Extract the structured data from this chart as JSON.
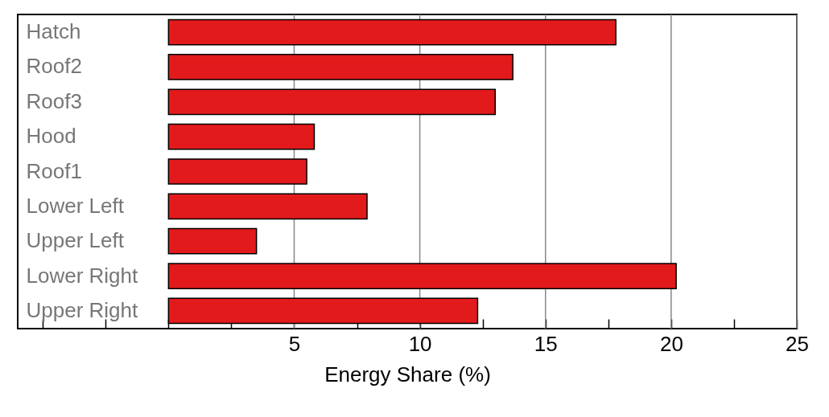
{
  "chart_data": {
    "type": "bar",
    "orientation": "horizontal",
    "xlabel": "Energy Share (%)",
    "categories": [
      "Hatch",
      "Roof2",
      "Roof3",
      "Hood",
      "Roof1",
      "Lower Left",
      "Upper Left",
      "Lower Right",
      "Upper Right"
    ],
    "values": [
      17.8,
      13.7,
      13.0,
      5.8,
      5.5,
      7.9,
      3.5,
      20.2,
      12.3
    ],
    "color": "#e31a1c",
    "xlim": [
      -6,
      25
    ],
    "xticks": [
      {
        "value": -5,
        "label": null
      },
      {
        "value": -2.5,
        "label": null
      },
      {
        "value": 0,
        "label": null
      },
      {
        "value": 2.5,
        "label": null
      },
      5,
      {
        "value": 7.5,
        "label": null
      },
      10,
      {
        "value": 12.5,
        "label": null
      },
      15,
      {
        "value": 17.5,
        "label": null
      },
      20,
      {
        "value": 22.5,
        "label": null
      },
      25
    ],
    "grid": "x"
  }
}
